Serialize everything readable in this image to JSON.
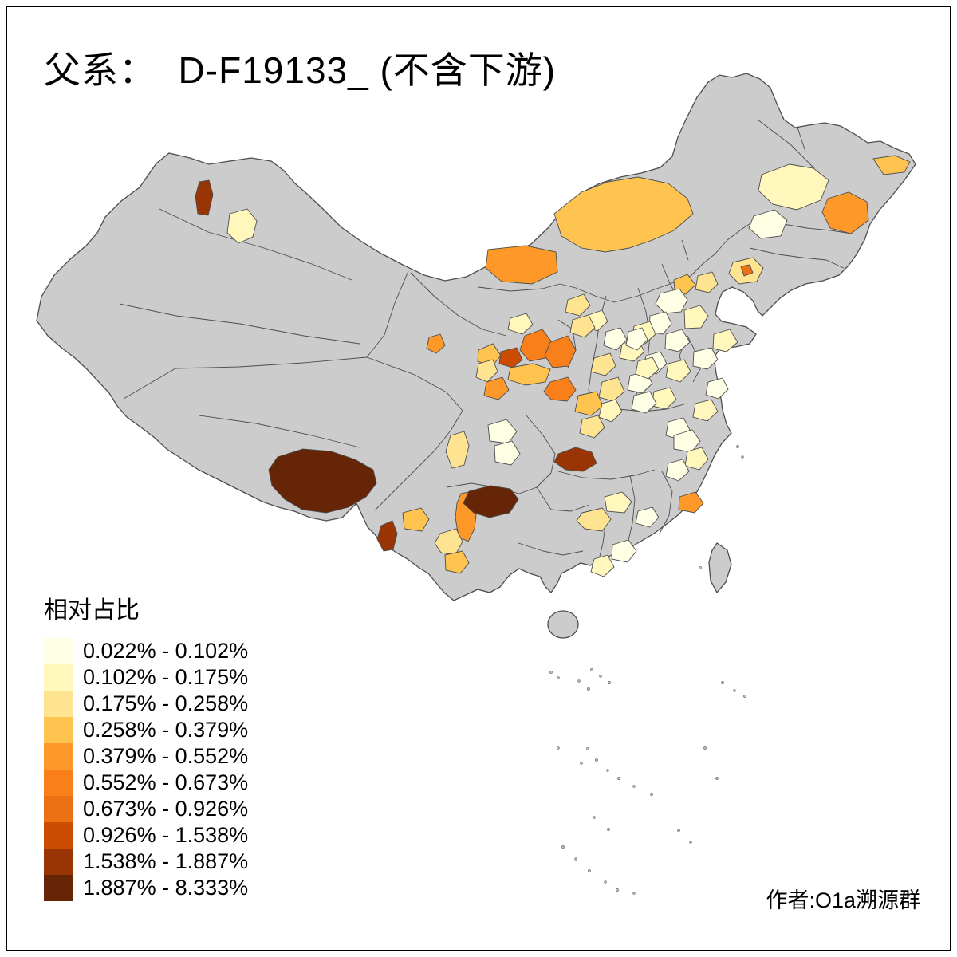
{
  "title": "父系：  D-F19133_ (不含下游)",
  "legend": {
    "title": "相对占比",
    "labels": [
      "0.022% - 0.102%",
      "0.102% - 0.175%",
      "0.175% - 0.258%",
      "0.258% - 0.379%",
      "0.379% - 0.552%",
      "0.552% - 0.673%",
      "0.673% - 0.926%",
      "0.926% - 1.538%",
      "1.538% - 1.887%",
      "1.887% - 8.333%"
    ]
  },
  "attribution": "作者:O1a溯源群",
  "map": {
    "land_color": "#CCCCCC",
    "boundary_color": "#4D4D4D",
    "sea_color": "#FFFFFF",
    "palette": [
      "#FFFFE5",
      "#FFF7BC",
      "#FEE391",
      "#FEC44F",
      "#FE9929",
      "#F87F19",
      "#EC7014",
      "#CC4C02",
      "#993404",
      "#662506"
    ]
  }
}
